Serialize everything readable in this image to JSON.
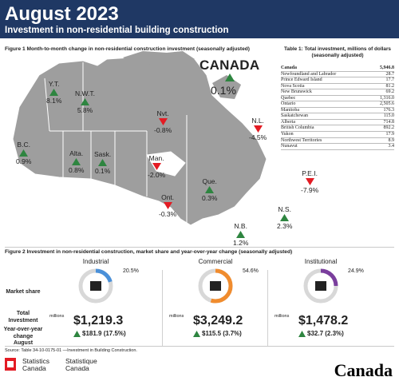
{
  "header": {
    "month": "August 2023",
    "subtitle": "Investment in non-residential building construction"
  },
  "figure1": {
    "title": "Figure 1  Month-to-month change in non-residential construction investment (seasonally adjusted)",
    "canada_label": "CANADA",
    "canada_change": "0.1%",
    "canada_direction": "up"
  },
  "chart_data": [
    {
      "type": "map",
      "title": "Figure 1  Month-to-month change in non-residential construction investment (seasonally adjusted)",
      "series": [
        {
          "name": "Month-to-month change (%)",
          "regions": [
            "Y.T.",
            "N.W.T.",
            "Nvt.",
            "B.C.",
            "Alta.",
            "Sask.",
            "Man.",
            "Ont.",
            "Que.",
            "N.L.",
            "P.E.I.",
            "N.S.",
            "N.B."
          ],
          "values": [
            8.1,
            5.8,
            -0.8,
            0.9,
            0.8,
            0.1,
            -2.0,
            -0.3,
            0.3,
            -4.5,
            -7.9,
            2.3,
            1.2
          ],
          "labels": [
            "8.1%",
            "5.8%",
            "-0.8%",
            "0.9%",
            "0.8%",
            "0.1%",
            "-2.0%",
            "-0.3%",
            "0.3%",
            "-4.5%",
            "-7.9%",
            "2.3%",
            "1.2%"
          ],
          "directions": [
            "up",
            "up",
            "down",
            "up",
            "up",
            "up",
            "down",
            "down",
            "up",
            "down",
            "down",
            "up",
            "up"
          ]
        }
      ],
      "canada": {
        "value": 0.1,
        "label": "0.1%"
      },
      "colors": {
        "up": "#2e8540",
        "down": "#e31b23"
      }
    },
    {
      "type": "table",
      "title": "Table 1: Total investment, millions of dollars (seasonally adjusted)",
      "categories": [
        "Canada",
        "Newfoundland and Labrador",
        "Prince Edward Island",
        "Nova Scotia",
        "New Brunswick",
        "Quebec",
        "Ontario",
        "Manitoba",
        "Saskatchewan",
        "Alberta",
        "British Columbia",
        "Yukon",
        "Northwest Territories",
        "Nunavut"
      ],
      "values": [
        5946.8,
        28.7,
        17.7,
        81.2,
        69.2,
        1316.0,
        2505.6,
        176.3,
        115.0,
        714.8,
        892.2,
        17.9,
        8.9,
        3.4
      ],
      "labels": [
        "5,946.8",
        "28.7",
        "17.7",
        "81.2",
        "69.2",
        "1,316.0",
        "2,505.6",
        "176.3",
        "115.0",
        "714.8",
        "892.2",
        "17.9",
        "8.9",
        "3.4"
      ]
    },
    {
      "type": "pie",
      "title": "Figure 2 Investment in non-residential construction, market share and year-over-year change (seasonally adjusted)",
      "categories": [
        "Industrial",
        "Commercial",
        "Institutional"
      ],
      "values": [
        20.5,
        54.6,
        24.9
      ],
      "labels": [
        "20.5%",
        "54.6%",
        "24.9%"
      ],
      "colors": [
        "#4a90d9",
        "#f08c2e",
        "#7a3e9d"
      ],
      "totals": [
        "$1,219.3",
        "$3,249.2",
        "$1,478.2"
      ],
      "total_values": [
        1219.3,
        3249.2,
        1478.2
      ],
      "yoy_change": [
        "$181.9 (17.5%)",
        "$115.5 (3.7%)",
        "$32.7 (2.3%)"
      ],
      "yoy_values": [
        181.9,
        115.5,
        32.7
      ],
      "yoy_pct": [
        17.5,
        3.7,
        2.3
      ]
    }
  ],
  "figure2": {
    "title": "Figure 2 Investment in non-residential construction, market share and year-over-year change (seasonally adjusted)",
    "row_market_share": "Market share",
    "row_total": "Total Investment",
    "row_yoy": "Year-over-year change August",
    "millions": "millions"
  },
  "footer": {
    "source": "Source: Table 34-10-0175-01 —Investment in Building Construction.",
    "agency_en": "Statistics Canada",
    "agency_fr": "Statistique Canada",
    "wordmark": "Canada"
  }
}
